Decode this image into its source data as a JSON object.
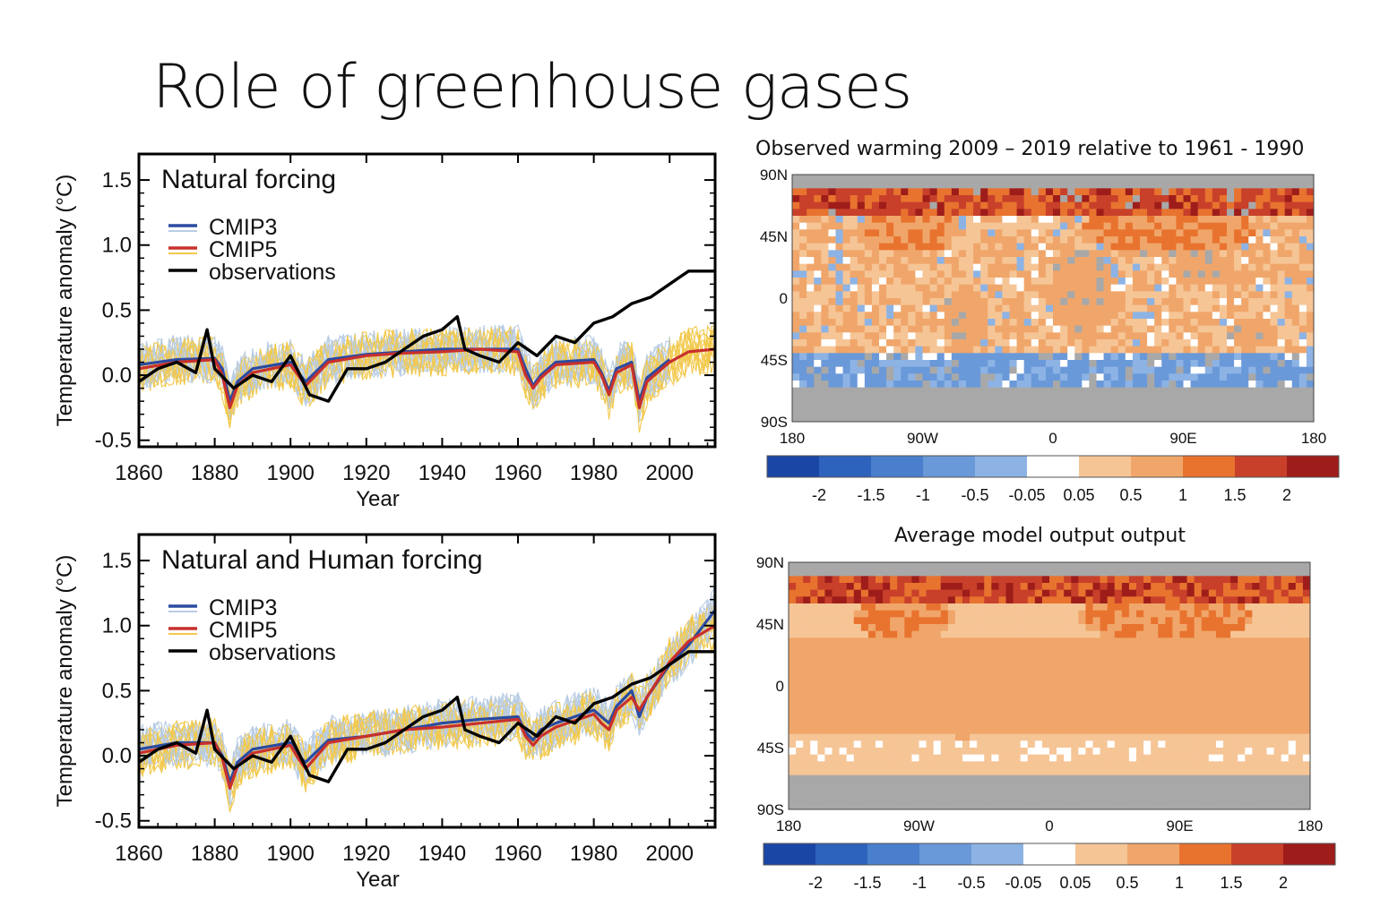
{
  "title": "Role of greenhouse gases",
  "colors": {
    "cmip3": "#2b4ba0",
    "cmip5": "#c8302c",
    "observations": "#000000",
    "cmip3_runs": "#b8cce4",
    "cmip5_runs": "#f2c94c",
    "ocean": "#f6c596",
    "land": "#f0a66a",
    "missing": "#a8a8a8"
  },
  "chart_data": [
    {
      "type": "line",
      "panel_title": "Natural forcing",
      "xlabel": "Year",
      "ylabel": "Temperature anomaly (°C)",
      "xlim": [
        1860,
        2012
      ],
      "ylim": [
        -0.55,
        1.7
      ],
      "x_ticks": [
        1860,
        1880,
        1900,
        1920,
        1940,
        1960,
        1980,
        2000
      ],
      "y_ticks": [
        -0.5,
        0.0,
        0.5,
        1.0,
        1.5
      ],
      "legend_position": "top-left",
      "series": [
        {
          "name": "CMIP3",
          "x": [
            1860,
            1870,
            1880,
            1882,
            1884,
            1886,
            1890,
            1900,
            1902,
            1904,
            1910,
            1920,
            1930,
            1940,
            1950,
            1960,
            1962,
            1964,
            1966,
            1970,
            1980,
            1982,
            1984,
            1986,
            1990,
            1992,
            1994,
            2000
          ],
          "y": [
            0.08,
            0.12,
            0.13,
            0.05,
            -0.2,
            -0.05,
            0.05,
            0.1,
            0.02,
            -0.05,
            0.12,
            0.16,
            0.18,
            0.2,
            0.2,
            0.2,
            0.05,
            -0.08,
            0.0,
            0.1,
            0.12,
            0.02,
            -0.12,
            0.05,
            0.1,
            -0.2,
            -0.02,
            0.12
          ]
        },
        {
          "name": "CMIP5",
          "x": [
            1860,
            1870,
            1880,
            1882,
            1884,
            1886,
            1890,
            1900,
            1902,
            1904,
            1910,
            1920,
            1930,
            1940,
            1950,
            1960,
            1962,
            1964,
            1966,
            1970,
            1980,
            1982,
            1984,
            1986,
            1990,
            1992,
            1994,
            2000,
            2005,
            2012
          ],
          "y": [
            0.05,
            0.1,
            0.12,
            0.0,
            -0.25,
            -0.08,
            0.02,
            0.08,
            0.0,
            -0.08,
            0.1,
            0.15,
            0.17,
            0.18,
            0.2,
            0.18,
            0.0,
            -0.1,
            -0.02,
            0.08,
            0.1,
            0.0,
            -0.15,
            0.02,
            0.08,
            -0.25,
            -0.05,
            0.1,
            0.18,
            0.2
          ]
        },
        {
          "name": "observations",
          "x": [
            1860,
            1865,
            1870,
            1875,
            1878,
            1880,
            1885,
            1890,
            1895,
            1900,
            1905,
            1910,
            1915,
            1920,
            1925,
            1930,
            1935,
            1940,
            1944,
            1946,
            1950,
            1955,
            1960,
            1965,
            1970,
            1975,
            1980,
            1985,
            1990,
            1995,
            2000,
            2005,
            2012
          ],
          "y": [
            -0.05,
            0.05,
            0.1,
            0.02,
            0.35,
            0.05,
            -0.1,
            0.0,
            -0.05,
            0.15,
            -0.15,
            -0.2,
            0.05,
            0.05,
            0.1,
            0.2,
            0.3,
            0.35,
            0.45,
            0.2,
            0.15,
            0.1,
            0.25,
            0.15,
            0.3,
            0.25,
            0.4,
            0.45,
            0.55,
            0.6,
            0.7,
            0.8,
            0.8
          ]
        }
      ]
    },
    {
      "type": "line",
      "panel_title": "Natural and Human forcing",
      "xlabel": "Year",
      "ylabel": "Temperature anomaly (°C)",
      "xlim": [
        1860,
        2012
      ],
      "ylim": [
        -0.55,
        1.7
      ],
      "x_ticks": [
        1860,
        1880,
        1900,
        1920,
        1940,
        1960,
        1980,
        2000
      ],
      "y_ticks": [
        -0.5,
        0.0,
        0.5,
        1.0,
        1.5
      ],
      "legend_position": "top-left",
      "series": [
        {
          "name": "CMIP3",
          "x": [
            1860,
            1870,
            1880,
            1882,
            1884,
            1886,
            1890,
            1900,
            1902,
            1904,
            1910,
            1920,
            1930,
            1940,
            1950,
            1960,
            1962,
            1964,
            1966,
            1970,
            1980,
            1982,
            1984,
            1986,
            1990,
            1992,
            1994,
            2000,
            2005,
            2012
          ],
          "y": [
            0.05,
            0.1,
            0.1,
            0.0,
            -0.2,
            -0.05,
            0.05,
            0.1,
            0.0,
            -0.05,
            0.12,
            0.15,
            0.2,
            0.25,
            0.28,
            0.3,
            0.18,
            0.12,
            0.2,
            0.25,
            0.35,
            0.3,
            0.25,
            0.38,
            0.5,
            0.3,
            0.45,
            0.7,
            0.85,
            1.12
          ]
        },
        {
          "name": "CMIP5",
          "x": [
            1860,
            1870,
            1880,
            1882,
            1884,
            1886,
            1890,
            1900,
            1902,
            1904,
            1910,
            1920,
            1930,
            1940,
            1950,
            1960,
            1962,
            1964,
            1966,
            1970,
            1980,
            1982,
            1984,
            1986,
            1990,
            1992,
            1994,
            2000,
            2005,
            2012
          ],
          "y": [
            0.02,
            0.08,
            0.1,
            -0.02,
            -0.25,
            -0.08,
            0.02,
            0.08,
            -0.02,
            -0.1,
            0.1,
            0.15,
            0.2,
            0.22,
            0.25,
            0.28,
            0.15,
            0.08,
            0.15,
            0.22,
            0.32,
            0.25,
            0.2,
            0.35,
            0.45,
            0.35,
            0.45,
            0.72,
            0.88,
            1.0
          ]
        },
        {
          "name": "observations",
          "x": [
            1860,
            1865,
            1870,
            1875,
            1878,
            1880,
            1885,
            1890,
            1895,
            1900,
            1905,
            1910,
            1915,
            1920,
            1925,
            1930,
            1935,
            1940,
            1944,
            1946,
            1950,
            1955,
            1960,
            1965,
            1970,
            1975,
            1980,
            1985,
            1990,
            1995,
            2000,
            2005,
            2012
          ],
          "y": [
            -0.05,
            0.05,
            0.1,
            0.02,
            0.35,
            0.05,
            -0.1,
            0.0,
            -0.05,
            0.15,
            -0.15,
            -0.2,
            0.05,
            0.05,
            0.1,
            0.2,
            0.3,
            0.35,
            0.45,
            0.2,
            0.15,
            0.1,
            0.25,
            0.15,
            0.3,
            0.25,
            0.4,
            0.45,
            0.55,
            0.6,
            0.7,
            0.8,
            0.8
          ]
        }
      ]
    },
    {
      "type": "heatmap",
      "caption": "Observed warming 2009 – 2019 relative to 1961 - 1990",
      "x_tick_labels": [
        "180",
        "90W",
        "0",
        "90E",
        "180"
      ],
      "y_tick_labels": [
        "90N",
        "45N",
        "0",
        "45S",
        "90S"
      ],
      "colorbar_labels": [
        "-2",
        "-1.5",
        "-1",
        "-0.5",
        "-0.05",
        "0.05",
        "0.5",
        "1",
        "1.5",
        "2"
      ],
      "colorbar_colors": [
        "#1a47a6",
        "#2e63bd",
        "#4a7fcd",
        "#6a99d9",
        "#8db3e5",
        "#ffffff",
        "#f6c596",
        "#f0a66a",
        "#e8732f",
        "#c8402a",
        "#9e1d1a"
      ]
    },
    {
      "type": "heatmap",
      "caption": "Average model output output",
      "x_tick_labels": [
        "180",
        "90W",
        "0",
        "90E",
        "180"
      ],
      "y_tick_labels": [
        "90N",
        "45N",
        "0",
        "45S",
        "90S"
      ],
      "colorbar_labels": [
        "-2",
        "-1.5",
        "-1",
        "-0.5",
        "-0.05",
        "0.05",
        "0.5",
        "1",
        "1.5",
        "2"
      ],
      "colorbar_colors": [
        "#1a47a6",
        "#2e63bd",
        "#4a7fcd",
        "#6a99d9",
        "#8db3e5",
        "#ffffff",
        "#f6c596",
        "#f0a66a",
        "#e8732f",
        "#c8402a",
        "#9e1d1a"
      ]
    }
  ]
}
